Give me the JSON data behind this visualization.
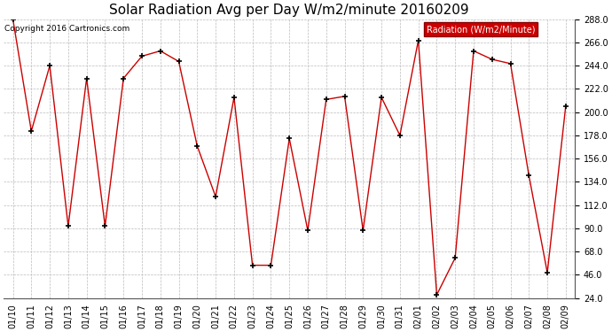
{
  "title": "Solar Radiation Avg per Day W/m2/minute 20160209",
  "copyright_text": "Copyright 2016 Cartronics.com",
  "legend_label": "Radiation (W/m2/Minute)",
  "dates": [
    "01/10",
    "01/11",
    "01/12",
    "01/13",
    "01/14",
    "01/15",
    "01/16",
    "01/17",
    "01/18",
    "01/19",
    "01/20",
    "01/21",
    "01/22",
    "01/23",
    "01/24",
    "01/25",
    "01/26",
    "01/27",
    "01/28",
    "01/29",
    "01/30",
    "01/31",
    "02/01",
    "02/02",
    "02/03",
    "02/04",
    "02/05",
    "02/06",
    "02/07",
    "02/08",
    "02/09"
  ],
  "values": [
    288,
    182,
    244,
    92,
    232,
    92,
    232,
    253,
    258,
    248,
    168,
    120,
    214,
    55,
    55,
    175,
    88,
    212,
    215,
    88,
    214,
    178,
    268,
    27,
    62,
    258,
    250,
    246,
    140,
    48,
    206
  ],
  "line_color": "#cc0000",
  "marker_color": "#000000",
  "bg_color": "#ffffff",
  "grid_color": "#bbbbbb",
  "legend_bg": "#cc0000",
  "legend_text_color": "#ffffff",
  "ylim_min": 24.0,
  "ylim_max": 288.0,
  "yticks": [
    24.0,
    46.0,
    68.0,
    90.0,
    112.0,
    134.0,
    156.0,
    178.0,
    200.0,
    222.0,
    244.0,
    266.0,
    288.0
  ],
  "title_fontsize": 11,
  "copyright_fontsize": 6.5,
  "tick_fontsize": 7,
  "legend_fontsize": 7
}
